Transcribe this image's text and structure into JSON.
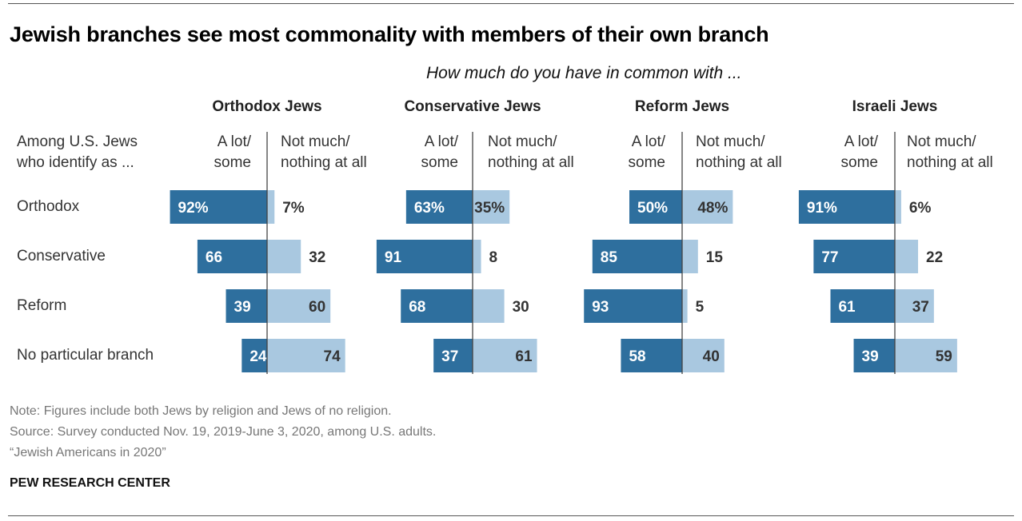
{
  "title": "Jewish branches see most commonality with members of their own branch",
  "subtitle": "How much do you have in common with ...",
  "row_header": [
    "Among U.S. Jews",
    "who identify as ..."
  ],
  "col_left_label": [
    "A lot/",
    "some"
  ],
  "col_right_label": [
    "Not much/",
    "nothing at all"
  ],
  "footnotes": {
    "note": "Note: Figures include both Jews by religion and Jews of no religion.",
    "source": "Source: Survey conducted Nov. 19, 2019-June 3, 2020, among U.S. adults.",
    "report": "“Jewish Americans in 2020”"
  },
  "brand": "PEW RESEARCH CENTER",
  "colors": {
    "a_lot": "#2e6f9e",
    "not_much": "#a9c8e0",
    "axis": "#444444",
    "text_dark": "#333333",
    "text_light": "#ffffff"
  },
  "chart_data": {
    "type": "bar",
    "orientation": "horizontal-diverging",
    "rows": [
      "Orthodox",
      "Conservative",
      "Reform",
      "No particular branch"
    ],
    "panels": [
      {
        "name": "Orthodox Jews",
        "a_lot_some": [
          92,
          66,
          39,
          24
        ],
        "not_much_nothing": [
          7,
          32,
          60,
          74
        ]
      },
      {
        "name": "Conservative Jews",
        "a_lot_some": [
          63,
          91,
          68,
          37
        ],
        "not_much_nothing": [
          35,
          8,
          30,
          61
        ]
      },
      {
        "name": "Reform Jews",
        "a_lot_some": [
          50,
          85,
          93,
          58
        ],
        "not_much_nothing": [
          48,
          15,
          5,
          40
        ]
      },
      {
        "name": "Israeli Jews",
        "a_lot_some": [
          91,
          77,
          61,
          39
        ],
        "not_much_nothing": [
          6,
          22,
          37,
          59
        ]
      }
    ],
    "percent_sign_first_row": true,
    "units": "%"
  }
}
